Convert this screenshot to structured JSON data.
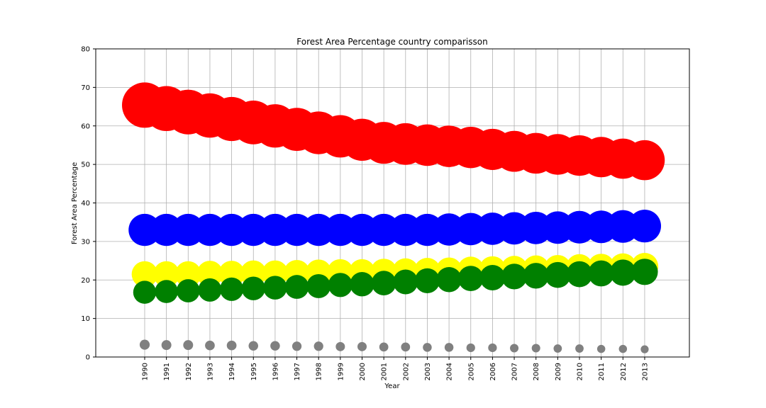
{
  "chart_data": {
    "type": "scatter",
    "title": "Forest Area Percentage country comparisson",
    "xlabel": "Year",
    "ylabel": "Forest Area Percentage",
    "ylim": [
      0,
      80
    ],
    "yticks": [
      "0",
      "10",
      "20",
      "30",
      "40",
      "50",
      "60",
      "70",
      "80"
    ],
    "x": [
      "1990",
      "1991",
      "1992",
      "1993",
      "1994",
      "1995",
      "1996",
      "1997",
      "1998",
      "1999",
      "2000",
      "2001",
      "2002",
      "2003",
      "2004",
      "2005",
      "2006",
      "2007",
      "2008",
      "2009",
      "2010",
      "2011",
      "2012",
      "2013"
    ],
    "grid": true,
    "series": [
      {
        "color": "#ff0000",
        "values": [
          65.4,
          64.5,
          63.6,
          62.7,
          61.8,
          60.9,
          60.0,
          59.1,
          58.2,
          57.3,
          56.4,
          55.6,
          55.3,
          55.0,
          54.7,
          54.4,
          53.9,
          53.4,
          52.9,
          52.6,
          52.3,
          51.9,
          51.5,
          51.1
        ]
      },
      {
        "color": "#0000ff",
        "values": [
          33.0,
          33.0,
          33.0,
          33.0,
          33.0,
          33.0,
          33.0,
          33.0,
          33.0,
          33.0,
          33.0,
          33.0,
          33.0,
          33.0,
          33.1,
          33.2,
          33.3,
          33.4,
          33.5,
          33.6,
          33.7,
          33.8,
          33.9,
          34.0
        ]
      },
      {
        "color": "#ffff00",
        "values": [
          21.5,
          21.5,
          21.5,
          21.6,
          21.6,
          21.7,
          21.7,
          21.8,
          21.9,
          22.0,
          22.0,
          22.1,
          22.2,
          22.3,
          22.4,
          22.6,
          22.7,
          22.8,
          22.9,
          23.0,
          23.2,
          23.3,
          23.4,
          23.5
        ]
      },
      {
        "color": "#008000",
        "values": [
          16.8,
          17.0,
          17.2,
          17.4,
          17.6,
          17.8,
          18.0,
          18.2,
          18.4,
          18.7,
          18.9,
          19.2,
          19.5,
          19.8,
          20.1,
          20.4,
          20.6,
          20.9,
          21.1,
          21.3,
          21.5,
          21.7,
          21.9,
          22.1
        ]
      },
      {
        "color": "#808080",
        "values": [
          3.2,
          3.1,
          3.1,
          3.0,
          3.0,
          2.9,
          2.9,
          2.8,
          2.8,
          2.7,
          2.7,
          2.6,
          2.6,
          2.5,
          2.5,
          2.4,
          2.4,
          2.3,
          2.3,
          2.2,
          2.2,
          2.1,
          2.1,
          2.0
        ]
      }
    ]
  }
}
